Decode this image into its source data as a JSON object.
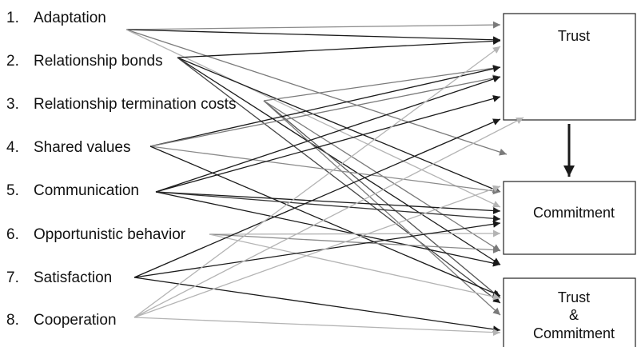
{
  "variables": [
    {
      "num": "1.",
      "label": "Adaptation"
    },
    {
      "num": "2.",
      "label": "Relationship bonds"
    },
    {
      "num": "3.",
      "label": "Relationship termination costs"
    },
    {
      "num": "4.",
      "label": "Shared values"
    },
    {
      "num": "5.",
      "label": "Communication"
    },
    {
      "num": "6.",
      "label": "Opportunistic behavior"
    },
    {
      "num": "7.",
      "label": "Satisfaction"
    },
    {
      "num": "8.",
      "label": "Cooperation"
    }
  ],
  "outcomes": {
    "trust": {
      "label": "Trust"
    },
    "commitment": {
      "label": "Commitment"
    },
    "both": {
      "line1": "Trust",
      "line2": "&",
      "line3": "Commitment"
    }
  },
  "colors": {
    "dark": "#1a1a1a",
    "mid": "#7a7a7a",
    "light": "#b4b4b4",
    "text": "#111111"
  }
}
